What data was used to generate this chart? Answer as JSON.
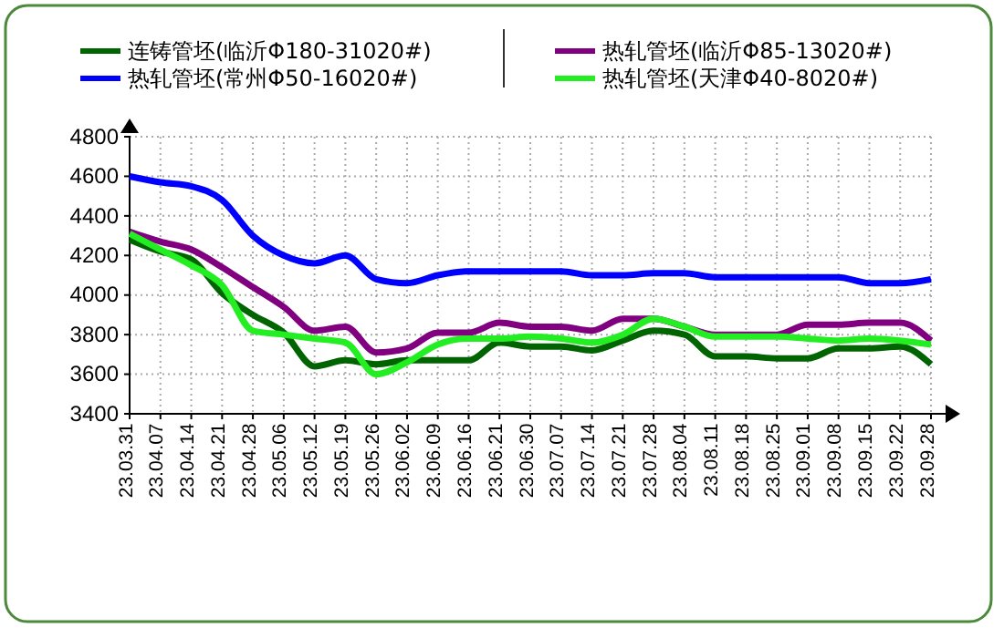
{
  "chart_data": {
    "type": "line",
    "categories": [
      "23.03.31",
      "23.04.07",
      "23.04.14",
      "23.04.21",
      "23.04.28",
      "23.05.06",
      "23.05.12",
      "23.05.19",
      "23.05.26",
      "23.06.02",
      "23.06.09",
      "23.06.16",
      "23.06.21",
      "23.06.30",
      "23.07.07",
      "23.07.14",
      "23.07.21",
      "23.07.28",
      "23.08.04",
      "23.08.11",
      "23.08.18",
      "23.08.25",
      "23.09.01",
      "23.09.08",
      "23.09.15",
      "23.09.22",
      "23.09.28"
    ],
    "series": [
      {
        "name": "连铸管坯(临沂Φ180-31020#)",
        "color": "#006400",
        "values": [
          4280,
          4220,
          4180,
          4010,
          3900,
          3810,
          3640,
          3670,
          3650,
          3670,
          3670,
          3670,
          3760,
          3740,
          3740,
          3720,
          3770,
          3820,
          3800,
          3690,
          3690,
          3680,
          3680,
          3730,
          3730,
          3740,
          3650
        ]
      },
      {
        "name": "热轧管坯(常州Φ50-16020#)",
        "color": "#0000ff",
        "values": [
          4600,
          4570,
          4550,
          4480,
          4300,
          4200,
          4160,
          4200,
          4080,
          4060,
          4100,
          4120,
          4120,
          4120,
          4120,
          4100,
          4100,
          4110,
          4110,
          4090,
          4090,
          4090,
          4090,
          4090,
          4060,
          4060,
          4080
        ]
      },
      {
        "name": "热轧管坯(临沂Φ85-13020#)",
        "color": "#800080",
        "values": [
          4320,
          4270,
          4230,
          4140,
          4040,
          3940,
          3820,
          3840,
          3710,
          3730,
          3810,
          3810,
          3860,
          3840,
          3840,
          3820,
          3880,
          3880,
          3840,
          3800,
          3800,
          3800,
          3850,
          3850,
          3860,
          3860,
          3770
        ]
      },
      {
        "name": "热轧管坯(天津Φ40-8020#)",
        "color": "#22ee22",
        "values": [
          4310,
          4230,
          4150,
          4050,
          3820,
          3800,
          3780,
          3760,
          3600,
          3660,
          3750,
          3780,
          3780,
          3790,
          3780,
          3760,
          3800,
          3880,
          3840,
          3790,
          3790,
          3790,
          3780,
          3770,
          3780,
          3770,
          3750
        ]
      }
    ],
    "ylim": [
      3400,
      4800
    ],
    "yticks": [
      3400,
      3600,
      3800,
      4000,
      4200,
      4400,
      4600,
      4800
    ],
    "grid": true,
    "legend": "top",
    "line_style": "solid",
    "marker": "none"
  }
}
